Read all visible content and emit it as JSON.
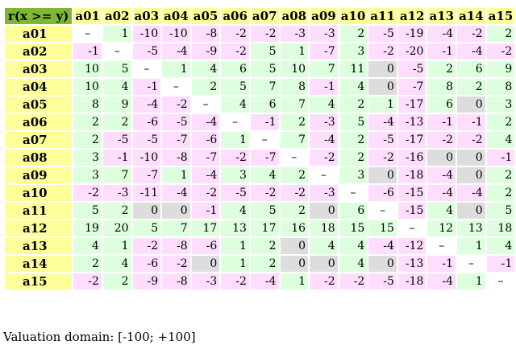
{
  "corner_label": "r(x >= y)",
  "columns": [
    "a01",
    "a02",
    "a03",
    "a04",
    "a05",
    "a06",
    "a07",
    "a08",
    "a09",
    "a10",
    "a11",
    "a12",
    "a13",
    "a14",
    "a15"
  ],
  "diagonal_symbol": "–",
  "rows": [
    {
      "label": "a01",
      "values": [
        "–",
        "1",
        "-10",
        "-10",
        "-8",
        "-2",
        "-2",
        "-3",
        "-3",
        "2",
        "-5",
        "-19",
        "-4",
        "-2",
        "2"
      ]
    },
    {
      "label": "a02",
      "values": [
        "-1",
        "–",
        "-5",
        "-4",
        "-9",
        "-2",
        "5",
        "1",
        "-7",
        "3",
        "-2",
        "-20",
        "-1",
        "-4",
        "-2"
      ]
    },
    {
      "label": "a03",
      "values": [
        "10",
        "5",
        "–",
        "1",
        "4",
        "6",
        "5",
        "10",
        "7",
        "11",
        "0",
        "-5",
        "2",
        "6",
        "9"
      ]
    },
    {
      "label": "a04",
      "values": [
        "10",
        "4",
        "-1",
        "–",
        "2",
        "5",
        "7",
        "8",
        "-1",
        "4",
        "0",
        "-7",
        "8",
        "2",
        "8"
      ]
    },
    {
      "label": "a05",
      "values": [
        "8",
        "9",
        "-4",
        "-2",
        "–",
        "4",
        "6",
        "7",
        "4",
        "2",
        "1",
        "-17",
        "6",
        "0",
        "3"
      ]
    },
    {
      "label": "a06",
      "values": [
        "2",
        "2",
        "-6",
        "-5",
        "-4",
        "–",
        "-1",
        "2",
        "-3",
        "5",
        "-4",
        "-13",
        "-1",
        "-1",
        "2"
      ]
    },
    {
      "label": "a07",
      "values": [
        "2",
        "-5",
        "-5",
        "-7",
        "-6",
        "1",
        "–",
        "7",
        "-4",
        "2",
        "-5",
        "-17",
        "-2",
        "-2",
        "4"
      ]
    },
    {
      "label": "a08",
      "values": [
        "3",
        "-1",
        "-10",
        "-8",
        "-7",
        "-2",
        "-7",
        "–",
        "-2",
        "2",
        "-2",
        "-16",
        "0",
        "0",
        "-1"
      ]
    },
    {
      "label": "a09",
      "values": [
        "3",
        "7",
        "-7",
        "1",
        "-4",
        "3",
        "4",
        "2",
        "–",
        "3",
        "0",
        "-18",
        "-4",
        "0",
        "2"
      ]
    },
    {
      "label": "a10",
      "values": [
        "-2",
        "-3",
        "-11",
        "-4",
        "-2",
        "-5",
        "-2",
        "-2",
        "-3",
        "–",
        "-6",
        "-15",
        "-4",
        "-4",
        "2"
      ]
    },
    {
      "label": "a11",
      "values": [
        "5",
        "2",
        "0",
        "0",
        "-1",
        "4",
        "5",
        "2",
        "0",
        "6",
        "–",
        "-15",
        "4",
        "0",
        "5"
      ]
    },
    {
      "label": "a12",
      "values": [
        "19",
        "20",
        "5",
        "7",
        "17",
        "13",
        "17",
        "16",
        "18",
        "15",
        "15",
        "–",
        "12",
        "13",
        "18"
      ]
    },
    {
      "label": "a13",
      "values": [
        "4",
        "1",
        "-2",
        "-8",
        "-6",
        "1",
        "2",
        "0",
        "4",
        "4",
        "-4",
        "-12",
        "–",
        "1",
        "4"
      ]
    },
    {
      "label": "a14",
      "values": [
        "2",
        "4",
        "-6",
        "-2",
        "0",
        "1",
        "2",
        "0",
        "0",
        "4",
        "0",
        "-13",
        "-1",
        "–",
        "-1"
      ]
    },
    {
      "label": "a15",
      "values": [
        "-2",
        "2",
        "-9",
        "-8",
        "-3",
        "-2",
        "-4",
        "1",
        "-2",
        "-2",
        "-5",
        "-18",
        "-4",
        "1",
        "–"
      ]
    }
  ],
  "colors": {
    "positive": "#ddffdd",
    "negative": "#ffddff",
    "zero": "#dddddd",
    "header": "#ffff99",
    "corner": "#7fb733"
  },
  "footer": "Valuation domain: [-100; +100]"
}
